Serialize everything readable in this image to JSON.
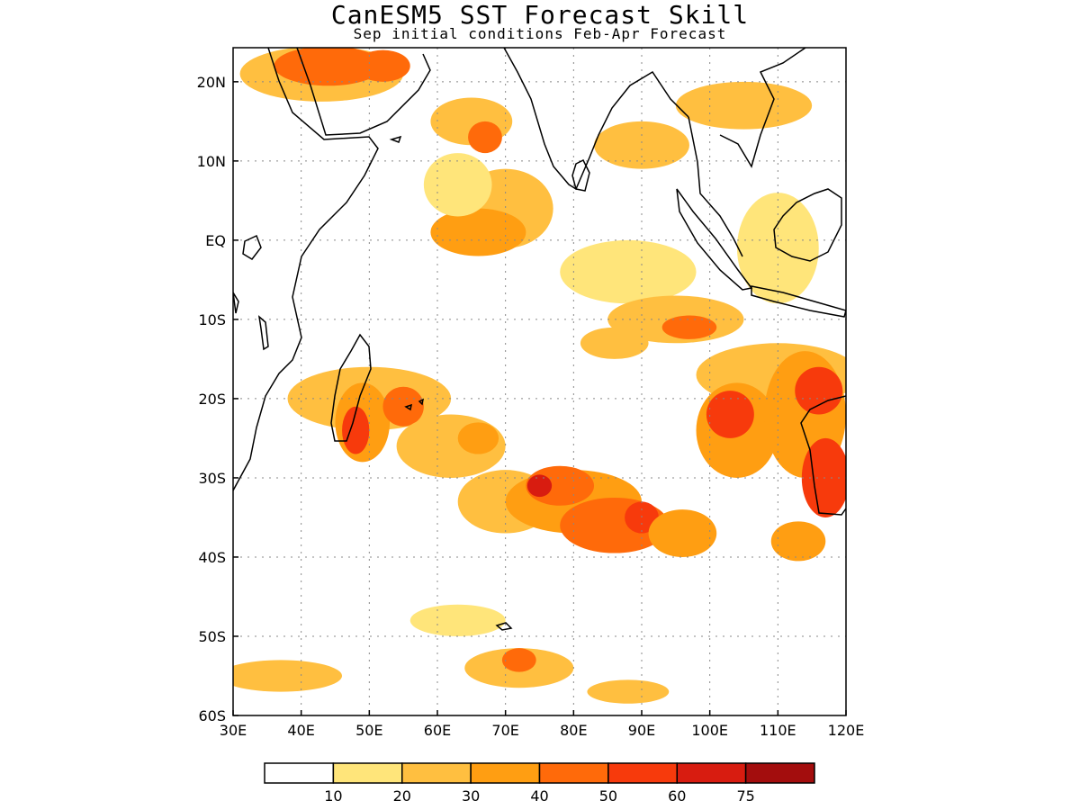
{
  "title": "CanESM5 SST Forecast Skill",
  "subtitle": "Sep initial conditions  Feb-Apr Forecast",
  "lon_ticks": [
    "30E",
    "40E",
    "50E",
    "60E",
    "70E",
    "80E",
    "90E",
    "100E",
    "110E",
    "120E"
  ],
  "lat_ticks": [
    "20N",
    "10N",
    "EQ",
    "10S",
    "20S",
    "30S",
    "40S",
    "50S",
    "60S"
  ],
  "colorbar": {
    "labels": [
      "10",
      "20",
      "30",
      "40",
      "50",
      "60",
      "75"
    ],
    "colors": [
      "#ffffff",
      "#ffe57a",
      "#ffbf40",
      "#ff9e12",
      "#ff6a0a",
      "#f73a0c",
      "#d81c10",
      "#a30d0d"
    ]
  },
  "skill_patches": [
    {
      "lon": 43,
      "lat": 21,
      "rx": 12,
      "ry": 3.5,
      "c": 2
    },
    {
      "lon": 44,
      "lat": 22,
      "rx": 8,
      "ry": 2.5,
      "c": 4
    },
    {
      "lon": 52,
      "lat": 22,
      "rx": 4,
      "ry": 2,
      "c": 4
    },
    {
      "lon": 65,
      "lat": 15,
      "rx": 6,
      "ry": 3,
      "c": 2
    },
    {
      "lon": 67,
      "lat": 13,
      "rx": 2.5,
      "ry": 2,
      "c": 4
    },
    {
      "lon": 70,
      "lat": 4,
      "rx": 7,
      "ry": 5,
      "c": 2
    },
    {
      "lon": 66,
      "lat": 1,
      "rx": 7,
      "ry": 3,
      "c": 3
    },
    {
      "lon": 63,
      "lat": 7,
      "rx": 5,
      "ry": 4,
      "c": 1
    },
    {
      "lon": 90,
      "lat": 12,
      "rx": 7,
      "ry": 3,
      "c": 2
    },
    {
      "lon": 105,
      "lat": 17,
      "rx": 10,
      "ry": 3,
      "c": 2
    },
    {
      "lon": 110,
      "lat": -1,
      "rx": 6,
      "ry": 7,
      "c": 1
    },
    {
      "lon": 88,
      "lat": -4,
      "rx": 10,
      "ry": 4,
      "c": 1
    },
    {
      "lon": 95,
      "lat": -10,
      "rx": 10,
      "ry": 3,
      "c": 2
    },
    {
      "lon": 97,
      "lat": -11,
      "rx": 4,
      "ry": 1.5,
      "c": 4
    },
    {
      "lon": 86,
      "lat": -13,
      "rx": 5,
      "ry": 2,
      "c": 2
    },
    {
      "lon": 110,
      "lat": -17,
      "rx": 12,
      "ry": 4,
      "c": 2
    },
    {
      "lon": 104,
      "lat": -24,
      "rx": 6,
      "ry": 6,
      "c": 3
    },
    {
      "lon": 103,
      "lat": -22,
      "rx": 3.5,
      "ry": 3,
      "c": 5
    },
    {
      "lon": 114,
      "lat": -22,
      "rx": 6,
      "ry": 8,
      "c": 3
    },
    {
      "lon": 116,
      "lat": -19,
      "rx": 3.5,
      "ry": 3,
      "c": 5
    },
    {
      "lon": 117,
      "lat": -30,
      "rx": 3.5,
      "ry": 5,
      "c": 5
    },
    {
      "lon": 113,
      "lat": -38,
      "rx": 4,
      "ry": 2.5,
      "c": 3
    },
    {
      "lon": 50,
      "lat": -20,
      "rx": 12,
      "ry": 4,
      "c": 2
    },
    {
      "lon": 49,
      "lat": -23,
      "rx": 4,
      "ry": 5,
      "c": 3
    },
    {
      "lon": 48,
      "lat": -24,
      "rx": 2,
      "ry": 3,
      "c": 5
    },
    {
      "lon": 55,
      "lat": -21,
      "rx": 3,
      "ry": 2.5,
      "c": 4
    },
    {
      "lon": 62,
      "lat": -26,
      "rx": 8,
      "ry": 4,
      "c": 2
    },
    {
      "lon": 66,
      "lat": -25,
      "rx": 3,
      "ry": 2,
      "c": 3
    },
    {
      "lon": 70,
      "lat": -33,
      "rx": 7,
      "ry": 4,
      "c": 2
    },
    {
      "lon": 80,
      "lat": -33,
      "rx": 10,
      "ry": 4,
      "c": 3
    },
    {
      "lon": 78,
      "lat": -31,
      "rx": 5,
      "ry": 2.5,
      "c": 4
    },
    {
      "lon": 75,
      "lat": -31,
      "rx": 1.8,
      "ry": 1.4,
      "c": 6
    },
    {
      "lon": 86,
      "lat": -36,
      "rx": 8,
      "ry": 3.5,
      "c": 4
    },
    {
      "lon": 90,
      "lat": -35,
      "rx": 2.5,
      "ry": 2,
      "c": 5
    },
    {
      "lon": 96,
      "lat": -37,
      "rx": 5,
      "ry": 3,
      "c": 3
    },
    {
      "lon": 37,
      "lat": -55,
      "rx": 9,
      "ry": 2,
      "c": 2
    },
    {
      "lon": 72,
      "lat": -54,
      "rx": 8,
      "ry": 2.5,
      "c": 2
    },
    {
      "lon": 72,
      "lat": -53,
      "rx": 2.5,
      "ry": 1.5,
      "c": 4
    },
    {
      "lon": 63,
      "lat": -48,
      "rx": 7,
      "ry": 2,
      "c": 1
    },
    {
      "lon": 88,
      "lat": -57,
      "rx": 6,
      "ry": 1.5,
      "c": 2
    }
  ]
}
